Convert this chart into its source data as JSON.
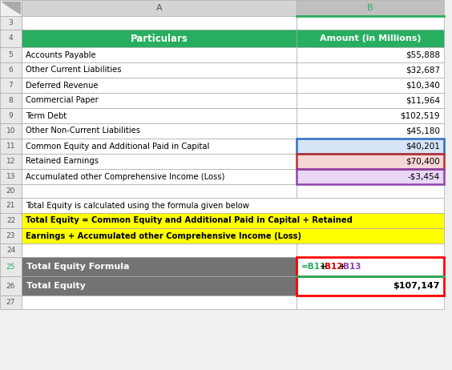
{
  "col_header_bg": "#27AE60",
  "col_header_text": "#FFFFFF",
  "gray_header_bg": "#737373",
  "yellow_bg": "#FFFF00",
  "spreadsheet_bg": "#F0F0F0",
  "col_header_row_bg": "#D4D4D4",
  "row_num_bg": "#E8E8E8",
  "data_rows": [
    {
      "row": 5,
      "col_a": "Accounts Payable",
      "col_b": "$55,888",
      "bg_b": "#FFFFFF",
      "border_b": null
    },
    {
      "row": 6,
      "col_a": "Other Current Liabilities",
      "col_b": "$32,687",
      "bg_b": "#FFFFFF",
      "border_b": null
    },
    {
      "row": 7,
      "col_a": "Deferred Revenue",
      "col_b": "$10,340",
      "bg_b": "#FFFFFF",
      "border_b": null
    },
    {
      "row": 8,
      "col_a": "Commercial Paper",
      "col_b": "$11,964",
      "bg_b": "#FFFFFF",
      "border_b": null
    },
    {
      "row": 9,
      "col_a": "Term Debt",
      "col_b": "$102,519",
      "bg_b": "#FFFFFF",
      "border_b": null
    },
    {
      "row": 10,
      "col_a": "Other Non-Current Liabilities",
      "col_b": "$45,180",
      "bg_b": "#FFFFFF",
      "border_b": null
    },
    {
      "row": 11,
      "col_a": "Common Equity and Additional Paid in Capital",
      "col_b": "$40,201",
      "bg_b": "#D6E4F7",
      "border_b": "#2E6FBF"
    },
    {
      "row": 12,
      "col_a": "Retained Earnings",
      "col_b": "$70,400",
      "bg_b": "#F7D6D6",
      "border_b": "#BF2E2E"
    },
    {
      "row": 13,
      "col_a": "Accumulated other Comprehensive Income (Loss)",
      "col_b": "-$3,454",
      "bg_b": "#EAD6F7",
      "border_b": "#8E44AD"
    }
  ],
  "text_row21": "Total Equity is calculated using the formula given below",
  "row22_text": "Total Equity = Common Equity and Additional Paid in Capital + Retained",
  "row23_text": "Earnings + Accumulated other Comprehensive Income (Loss)",
  "row25_label": "Total Equity Formula",
  "row25_formula_parts": [
    {
      "text": "=B11",
      "color": "#27AE60"
    },
    {
      "text": "+",
      "color": "#000000"
    },
    {
      "text": "B12",
      "color": "#CC0000"
    },
    {
      "text": "+",
      "color": "#000000"
    },
    {
      "text": "B13",
      "color": "#8E44AD"
    }
  ],
  "row26_label": "Total Equity",
  "row26_value": "$107,147",
  "col_b_header_bg": "#C0C0C0",
  "col_b_selected_line": "#27AE60"
}
